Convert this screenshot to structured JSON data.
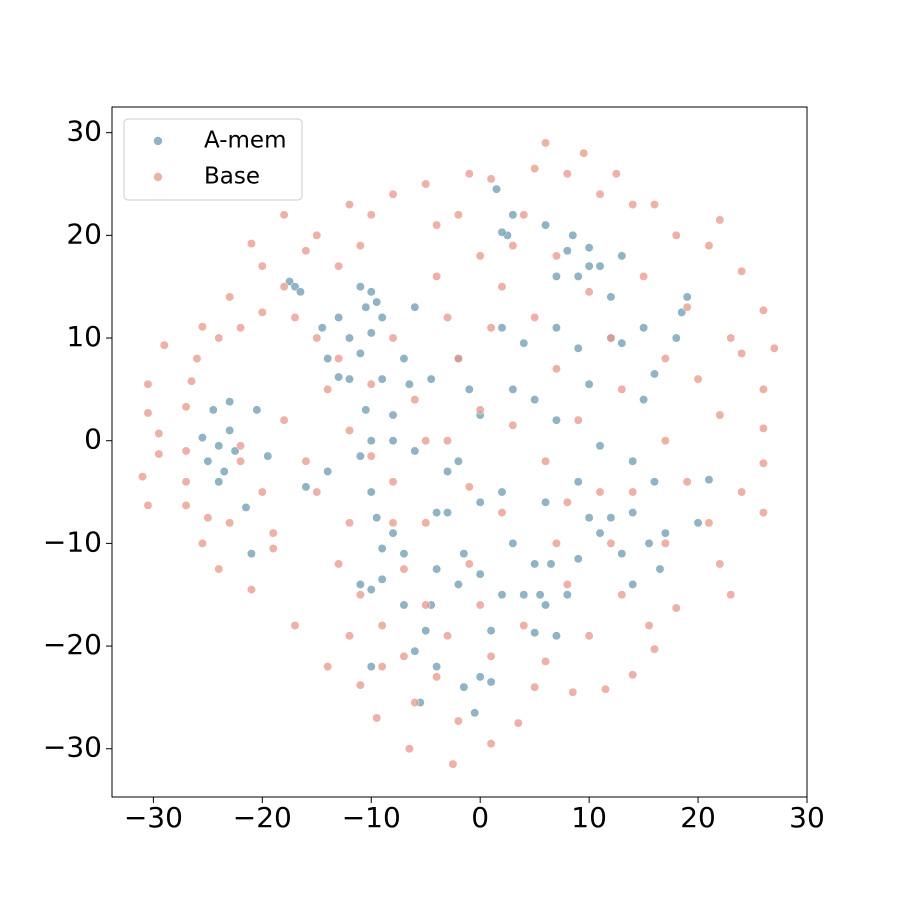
{
  "chart_data": {
    "type": "scatter",
    "xlim": [
      -33.8,
      30.0
    ],
    "ylim": [
      -34.7,
      32.5
    ],
    "xticks": [
      {
        "value": -30,
        "label": "−30"
      },
      {
        "value": -20,
        "label": "−20"
      },
      {
        "value": -10,
        "label": "−10"
      },
      0,
      10,
      20,
      30
    ],
    "yticks": [
      {
        "value": -30,
        "label": "−30"
      },
      {
        "value": -20,
        "label": "−20"
      },
      {
        "value": -10,
        "label": "−10"
      },
      0,
      10,
      20,
      30
    ],
    "legend": "upper left",
    "grid": false,
    "series": [
      {
        "name": "A-mem",
        "color": "#6b9ab3",
        "x": [
          -25.5,
          -25,
          -24.5,
          -24,
          -23.5,
          -23,
          -23,
          -22.5,
          -24,
          -21.5,
          -21,
          -20.5,
          -19.5,
          -17.5,
          -17,
          -16.5,
          -14.5,
          -14,
          -13,
          -13,
          -12,
          -11,
          -10.5,
          -10,
          -9.5,
          -9,
          -10,
          -11,
          -12,
          -9,
          -10.5,
          -10,
          -11,
          -8,
          -10,
          -9.5,
          -9,
          -8,
          -9,
          -10,
          -11,
          -10,
          -7,
          -6.5,
          -7,
          -6,
          -4.5,
          -4,
          -4,
          -4.5,
          -5,
          -6,
          -5.5,
          -3,
          -2,
          -2,
          -1.5,
          -1.5,
          0,
          0,
          0,
          0,
          1,
          -0.5,
          1,
          2,
          2,
          3,
          2.5,
          3,
          2,
          1.5,
          4,
          4,
          5,
          5,
          5.5,
          6,
          6,
          6.5,
          7,
          7,
          7,
          8,
          8.5,
          9,
          10,
          10,
          11,
          9,
          10,
          11,
          12,
          13,
          11,
          12,
          13,
          14,
          14,
          15,
          15.5,
          16,
          17,
          18,
          18.5,
          19,
          21,
          20,
          9,
          10,
          8,
          3,
          5,
          -1,
          2,
          6,
          12,
          13,
          15,
          16,
          -6,
          -3,
          -14,
          -16,
          -7,
          -4,
          14,
          16.5,
          9,
          7,
          -2,
          -8
        ],
        "values": [
          0.3,
          -2,
          3,
          -0.5,
          -3,
          1,
          3.8,
          -1,
          -4,
          -6.5,
          -11,
          3,
          -1.5,
          15.5,
          15,
          14.5,
          11,
          8,
          12,
          6.2,
          10,
          15,
          13,
          14.5,
          13.5,
          12,
          10.5,
          8.5,
          6,
          6,
          3,
          0,
          -1.5,
          0,
          -5,
          -7.5,
          -10.5,
          -9,
          -13.5,
          -14.5,
          -14,
          -22,
          -11,
          5.5,
          8,
          13,
          6,
          -7,
          -12.5,
          -16,
          -18.5,
          -20.5,
          -25.5,
          -3,
          8,
          -2,
          -11,
          -24,
          2.5,
          -6,
          -13,
          -23,
          -23.5,
          -26.5,
          -18.5,
          -15,
          -5,
          -10,
          20,
          22,
          20.3,
          24.5,
          9.5,
          -15,
          -12,
          -18.7,
          -15,
          -16,
          -6,
          -12,
          2,
          11,
          16,
          18.5,
          20,
          16,
          17,
          18.8,
          17,
          9,
          5.5,
          -0.5,
          10,
          9.5,
          -9,
          -7.5,
          -11,
          -7,
          -2,
          11,
          -10,
          6.5,
          -9,
          10,
          12.5,
          14,
          -3.8,
          -8,
          -4,
          -7.5,
          -15,
          5,
          4,
          5,
          11,
          21,
          14,
          18,
          4,
          -4,
          -1,
          -7,
          -3,
          -4.5,
          -16,
          -22,
          -14,
          -12.5,
          -11.5,
          -19,
          -14,
          2.5
        ]
      },
      {
        "name": "Base",
        "color": "#e8978a",
        "x": [
          -30.5,
          -30.5,
          -29.5,
          -31,
          -30.5,
          -29.5,
          -29,
          -27,
          -27,
          -27,
          -27,
          -26.5,
          -26,
          -25.5,
          -25.5,
          -25,
          -24,
          -24,
          -23,
          -23,
          -22,
          -22,
          -21,
          -21,
          -20,
          -20,
          -20,
          -19,
          -19,
          -18,
          -18,
          -17,
          -17,
          -16,
          -16,
          -15,
          -15,
          -14,
          -14,
          -13,
          -13,
          -13,
          -12,
          -12,
          -12,
          -12,
          -11,
          -11,
          -11,
          -10,
          -10,
          -10,
          -9.5,
          -9,
          -9,
          -8,
          -8,
          -8,
          -7,
          -7,
          -6.5,
          -6,
          -6,
          -5,
          -5,
          -5,
          -4,
          -4,
          -4,
          -3,
          -3,
          -3,
          -2.5,
          -2,
          -2,
          -2,
          -1,
          -1,
          -1,
          0,
          0,
          0,
          1,
          1,
          1,
          1,
          2,
          2,
          3,
          3.5,
          3,
          4,
          4,
          5,
          5,
          5,
          6,
          6,
          6,
          7,
          7,
          7,
          8,
          8,
          8.5,
          9,
          9.5,
          10,
          10,
          11,
          11,
          11.5,
          12,
          12.5,
          13,
          13,
          14,
          14,
          14,
          15,
          15.5,
          16,
          16,
          17,
          17,
          17,
          18,
          18,
          19,
          19,
          20,
          21,
          21,
          22,
          22,
          22,
          23,
          23,
          24,
          24,
          24,
          26,
          26,
          26,
          26,
          27,
          26,
          -22,
          -18,
          -15,
          -8,
          -5,
          8,
          12
        ],
        "values": [
          5.5,
          2.7,
          -1.3,
          -3.5,
          -6.3,
          0.7,
          9.3,
          3.3,
          -1,
          -4,
          -6.3,
          5.8,
          8,
          11.1,
          -10,
          -7.5,
          10,
          -12.5,
          14,
          -8,
          11,
          -2,
          19.2,
          -14.5,
          17,
          12.5,
          -5,
          -9,
          -10.5,
          22,
          15,
          12,
          -18,
          18.5,
          -2,
          10,
          20,
          -22,
          5,
          8,
          17,
          -12,
          23,
          1,
          -8,
          -19,
          -15,
          19,
          -23.8,
          -1.5,
          22,
          5.5,
          -27,
          -18,
          -22,
          24,
          -4,
          10,
          -12.5,
          -21,
          -30,
          -25.5,
          4,
          25,
          -8,
          -16,
          21,
          16,
          -23,
          -19,
          12,
          0,
          -31.5,
          -27.3,
          8,
          22,
          26,
          -12,
          -4.5,
          -16,
          18,
          3,
          25.5,
          -29.5,
          -21,
          11,
          -7,
          15,
          19,
          -27.5,
          1.5,
          22,
          -18,
          26.5,
          -24,
          12,
          29,
          -2,
          -21.5,
          18,
          -10,
          7,
          26,
          -14,
          -24.5,
          2,
          28,
          -19,
          14.5,
          24,
          -5,
          -24.2,
          10,
          26,
          -15,
          5,
          23,
          -22.8,
          -5,
          16,
          -18,
          -20.3,
          23,
          0,
          8,
          -10,
          20,
          -16.3,
          -4,
          13,
          6,
          19,
          -8,
          21.5,
          -12,
          2.5,
          -15,
          10,
          8.5,
          -5,
          16.5,
          12.7,
          5,
          -2.2,
          -7,
          9,
          1.2,
          -0.5,
          2,
          -5,
          -8,
          0,
          -6,
          -10
        ]
      }
    ]
  }
}
